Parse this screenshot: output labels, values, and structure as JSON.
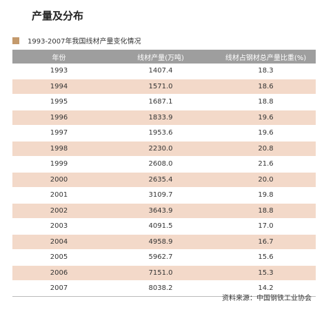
{
  "title": "产量及分布",
  "subtitle": "1993-2007年我国线材产量变化情况",
  "table": {
    "header": [
      "年份",
      "线材产量(万吨)",
      "线材占钢材总产量比重(%)"
    ],
    "rows": [
      [
        "1993",
        "1407.4",
        "18.3"
      ],
      [
        "1994",
        "1571.0",
        "18.6"
      ],
      [
        "1995",
        "1687.1",
        "18.8"
      ],
      [
        "1996",
        "1833.9",
        "19.6"
      ],
      [
        "1997",
        "1953.6",
        "19.6"
      ],
      [
        "1998",
        "2230.0",
        "20.8"
      ],
      [
        "1999",
        "2608.0",
        "21.6"
      ],
      [
        "2000",
        "2635.4",
        "20.0"
      ],
      [
        "2001",
        "3109.7",
        "19.8"
      ],
      [
        "2002",
        "3643.9",
        "18.8"
      ],
      [
        "2003",
        "4091.5",
        "17.0"
      ],
      [
        "2004",
        "4958.9",
        "16.7"
      ],
      [
        "2005",
        "5962.7",
        "15.6"
      ],
      [
        "2006",
        "7151.0",
        "15.3"
      ],
      [
        "2007",
        "8038.2",
        "14.2"
      ]
    ]
  },
  "source": "资料来源：中国钢铁工业协会"
}
